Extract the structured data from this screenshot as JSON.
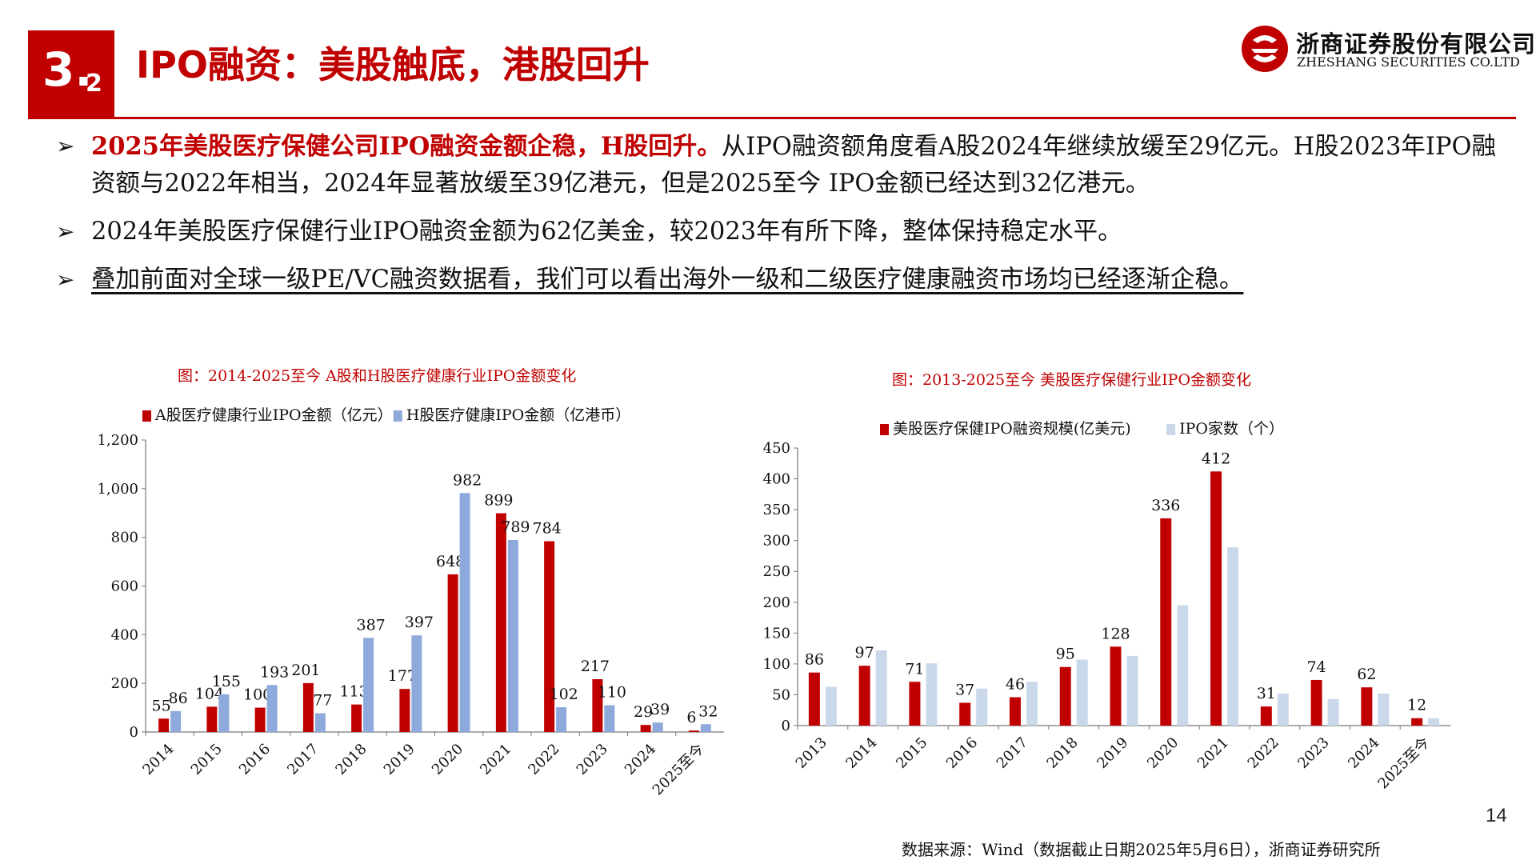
{
  "header": {
    "section_number": "3.",
    "section_sub": "2",
    "title": "IPO融资：美股触底，港股回升",
    "company_cn": "浙商证券股份有限公司",
    "company_en": "ZHESHANG SECURITIES CO.LTD"
  },
  "bullets": [
    {
      "highlight": "2025年美股医疗保健公司IPO融资金额企稳，H股回升。",
      "text": "从IPO融资额角度看A股2024年继续放缓至29亿元。H股2023年IPO融资额与2022年相当，2024年显著放缓至39亿港元，但是2025至今 IPO金额已经达到32亿港元。"
    },
    {
      "highlight": "",
      "text": "2024年美股医疗保健行业IPO融资金额为62亿美金，较2023年有所下降，整体保持稳定水平。"
    },
    {
      "highlight": "",
      "text": "叠加前面对全球一级PE/VC融资数据看，我们可以看出海外一级和二级医疗健康融资市场均已经逐渐企稳。"
    }
  ],
  "chart_data": [
    {
      "type": "bar",
      "title": "图：2014-2025至今 A股和H股医疗健康行业IPO金额变化",
      "categories": [
        "2014",
        "2015",
        "2016",
        "2017",
        "2018",
        "2019",
        "2020",
        "2021",
        "2022",
        "2023",
        "2024",
        "2025至今"
      ],
      "series": [
        {
          "name": "A股医疗健康行业IPO金额（亿元）",
          "color": "#C00000",
          "values": [
            55,
            104,
            100,
            201,
            113,
            177,
            648,
            899,
            784,
            217,
            29,
            6
          ],
          "labels": [
            "55",
            "104",
            "100",
            "201",
            "113",
            "177",
            "648",
            "899",
            "784",
            "217",
            "29",
            "6"
          ]
        },
        {
          "name": "H股医疗健康IPO金额（亿港币）",
          "color": "#8EA9DB",
          "values": [
            86,
            155,
            193,
            77,
            387,
            397,
            982,
            789,
            102,
            110,
            39,
            32
          ],
          "labels": [
            "86",
            "155",
            "193",
            "77",
            "387",
            "397",
            "982",
            "789",
            "102",
            "110",
            "39",
            "32"
          ]
        }
      ],
      "yticks": [
        "0",
        "200",
        "400",
        "600",
        "800",
        "1,000",
        "1,200"
      ],
      "ylim": [
        0,
        1200
      ],
      "xlabel": "",
      "ylabel": "",
      "legend": "top",
      "grid": false
    },
    {
      "type": "bar",
      "title": "图：2013-2025至今 美股医疗保健行业IPO金额变化",
      "categories": [
        "2013",
        "2014",
        "2015",
        "2016",
        "2017",
        "2018",
        "2019",
        "2020",
        "2021",
        "2022",
        "2023",
        "2024",
        "2025至今"
      ],
      "series": [
        {
          "name": "美股医疗保健IPO融资规模(亿美元)",
          "color": "#C00000",
          "values": [
            86,
            97,
            71,
            37,
            46,
            95,
            128,
            336,
            412,
            31,
            74,
            62,
            12
          ],
          "labels": [
            "86",
            "97",
            "71",
            "37",
            "46",
            "95",
            "128",
            "336",
            "412",
            "31",
            "74",
            "62",
            "12"
          ]
        },
        {
          "name": "IPO家数（个）",
          "color": "#C9D9EA",
          "values": [
            63,
            122,
            101,
            60,
            71,
            107,
            113,
            195,
            289,
            52,
            43,
            52,
            12
          ],
          "labels": []
        }
      ],
      "yticks": [
        "0",
        "50",
        "100",
        "150",
        "200",
        "250",
        "300",
        "350",
        "400",
        "450"
      ],
      "ylim": [
        0,
        450
      ],
      "xlabel": "",
      "ylabel": "",
      "legend": "top",
      "grid": false
    }
  ],
  "footer": {
    "source": "数据来源：Wind（数据截止日期2025年5月6日），浙商证券研究所",
    "page": "14"
  }
}
